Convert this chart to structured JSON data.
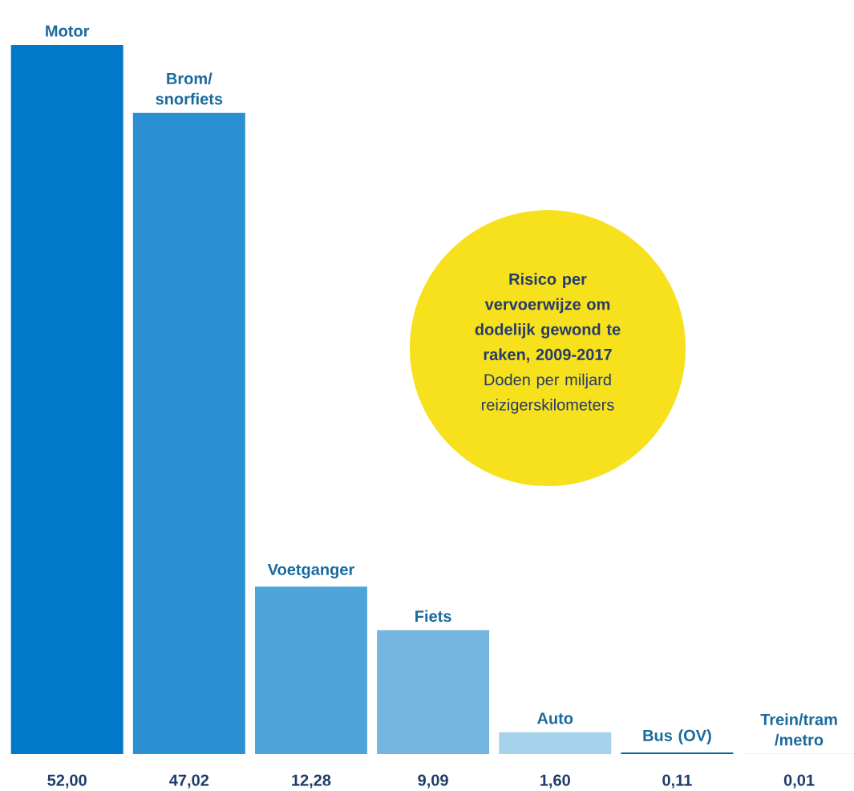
{
  "chart_data": {
    "type": "bar",
    "title": "Risico per vervoerwijze om dodelijk gewond te raken, 2009-2017",
    "subtitle": "Doden per miljard reizigerskilometers",
    "categories": [
      "Motor",
      "Brom/ snorfiets",
      "Voetganger",
      "Fiets",
      "Auto",
      "Bus (OV)",
      "Trein/tram /metro"
    ],
    "values": [
      52.0,
      47.02,
      12.28,
      9.09,
      1.6,
      0.11,
      0.01
    ],
    "value_labels": [
      "52,00",
      "47,02",
      "12,28",
      "9,09",
      "1,60",
      "0,11",
      "0,01"
    ],
    "colors": [
      "#0079c8",
      "#2a8fd3",
      "#4ea3d8",
      "#74b6e0",
      "#a6d1eb",
      "#00649e",
      "#3d86c0"
    ]
  }
}
